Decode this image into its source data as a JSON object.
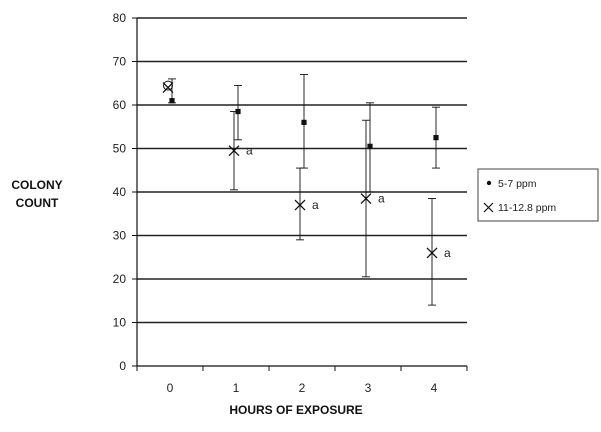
{
  "chart_data": {
    "type": "scatter",
    "categories": [
      "0",
      "1",
      "2",
      "3",
      "4"
    ],
    "x": [
      0,
      1,
      2,
      3,
      4
    ],
    "xlabel": "HOURS OF EXPOSURE",
    "ylabel": [
      "COLONY",
      "COUNT"
    ],
    "ylim": [
      0,
      80
    ],
    "yticks": [
      0,
      10,
      20,
      30,
      40,
      50,
      60,
      70,
      80
    ],
    "grid": true,
    "legend_position": "right",
    "series": [
      {
        "name": "5-7 ppm",
        "marker": "dot",
        "values": [
          61,
          58.5,
          56,
          50.5,
          52.5
        ],
        "error_low": [
          60.5,
          52,
          45.5,
          40,
          45.5
        ],
        "error_high": [
          66,
          64.5,
          67,
          60.5,
          59.5
        ],
        "annotations": [
          "",
          "",
          "",
          "",
          ""
        ]
      },
      {
        "name": "11-12.8 ppm",
        "marker": "x",
        "values": [
          64,
          49.5,
          37,
          38.5,
          26
        ],
        "error_low": [
          64,
          40.5,
          29,
          20.5,
          14
        ],
        "error_high": [
          64,
          58.5,
          45.5,
          56.5,
          38.5
        ],
        "annotations": [
          "",
          "a",
          "a",
          "a",
          "a"
        ]
      }
    ],
    "colors": {
      "ink": "#111111",
      "grid": "#222222"
    }
  }
}
